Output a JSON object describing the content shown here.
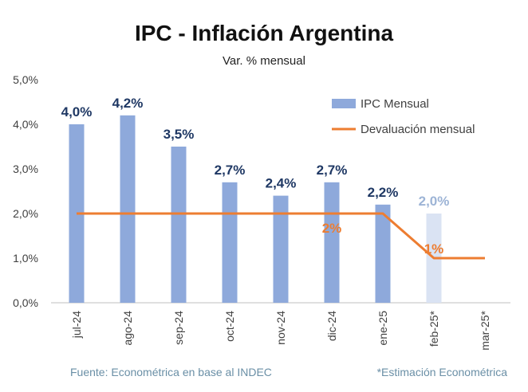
{
  "chart_data": {
    "type": "bar",
    "title": "IPC - Inflación Argentina",
    "subtitle": "Var. % mensual",
    "categories": [
      "jul-24",
      "ago-24",
      "sep-24",
      "oct-24",
      "nov-24",
      "dic-24",
      "ene-25",
      "feb-25*",
      "mar-25*"
    ],
    "ylim": [
      0,
      5
    ],
    "yticks": [
      "0,0%",
      "1,0%",
      "2,0%",
      "3,0%",
      "4,0%",
      "5,0%"
    ],
    "yticks_values": [
      0,
      1,
      2,
      3,
      4,
      5
    ],
    "series": [
      {
        "name": "IPC Mensual",
        "type": "bar",
        "color": "#8ea9db",
        "estimate_color": "#dae3f3",
        "values": [
          4.0,
          4.2,
          3.5,
          2.7,
          2.4,
          2.7,
          2.2,
          2.0,
          null
        ],
        "labels": [
          "4,0%",
          "4,2%",
          "3,5%",
          "2,7%",
          "2,4%",
          "2,7%",
          "2,2%",
          "2,0%",
          ""
        ],
        "label_color": "#1f3864",
        "estimate_label_color": "#9db4d6",
        "estimated": [
          false,
          false,
          false,
          false,
          false,
          false,
          false,
          true,
          false
        ]
      },
      {
        "name": "Devaluación mensual",
        "type": "line",
        "color": "#ed7d31",
        "values": [
          2,
          2,
          2,
          2,
          2,
          2,
          2,
          1,
          1
        ],
        "labels": [
          {
            "index": 5,
            "text": "2%"
          },
          {
            "index": 7,
            "text": "1%"
          }
        ]
      }
    ],
    "legend_position": "top-right",
    "grid": false
  },
  "footer": {
    "source": "Fuente: Econométrica en base al INDEC",
    "note": "*Estimación Econométrica"
  }
}
